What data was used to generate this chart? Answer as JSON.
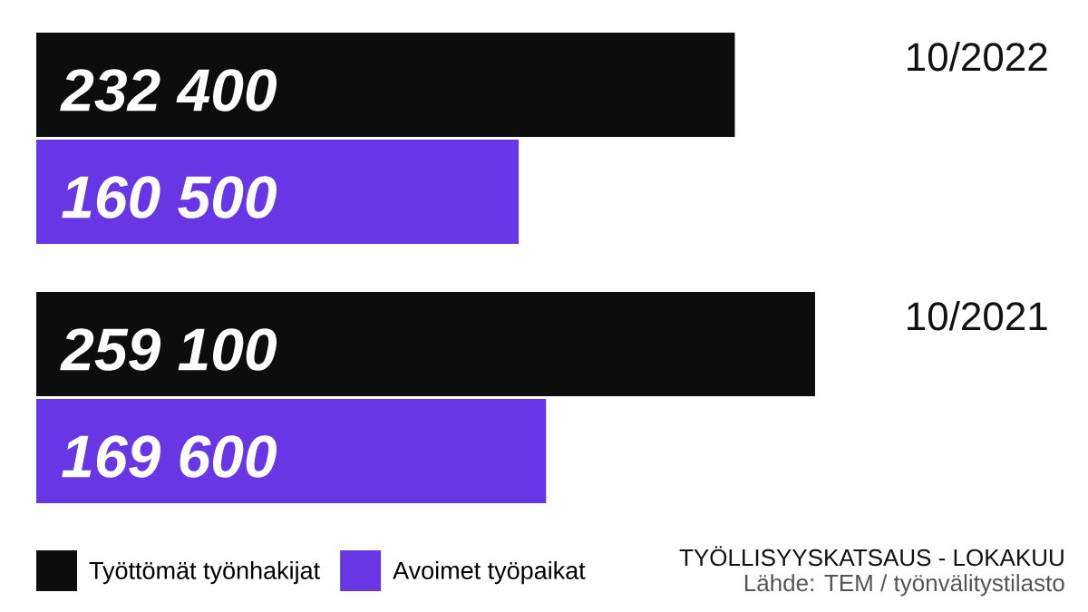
{
  "chart_data": {
    "type": "bar",
    "orientation": "horizontal",
    "title": "TYÖLLISYYSKATSAUS - LOKAKUU",
    "annotations": [
      "Lähde: TEM / työnvälitystilasto"
    ],
    "categories": [
      "10/2022",
      "10/2021"
    ],
    "series": [
      {
        "name": "Työttömät työnhakijat",
        "color": "#0d0d0d",
        "values": [
          232400,
          259100
        ],
        "value_labels": [
          "232 400",
          "259 100"
        ]
      },
      {
        "name": "Avoimet työpaikat",
        "color": "#6737e6",
        "values": [
          160500,
          169600
        ],
        "value_labels": [
          "160 500",
          "169 600"
        ]
      }
    ],
    "legend": "bottom left",
    "tick_labels": "y"
  }
}
